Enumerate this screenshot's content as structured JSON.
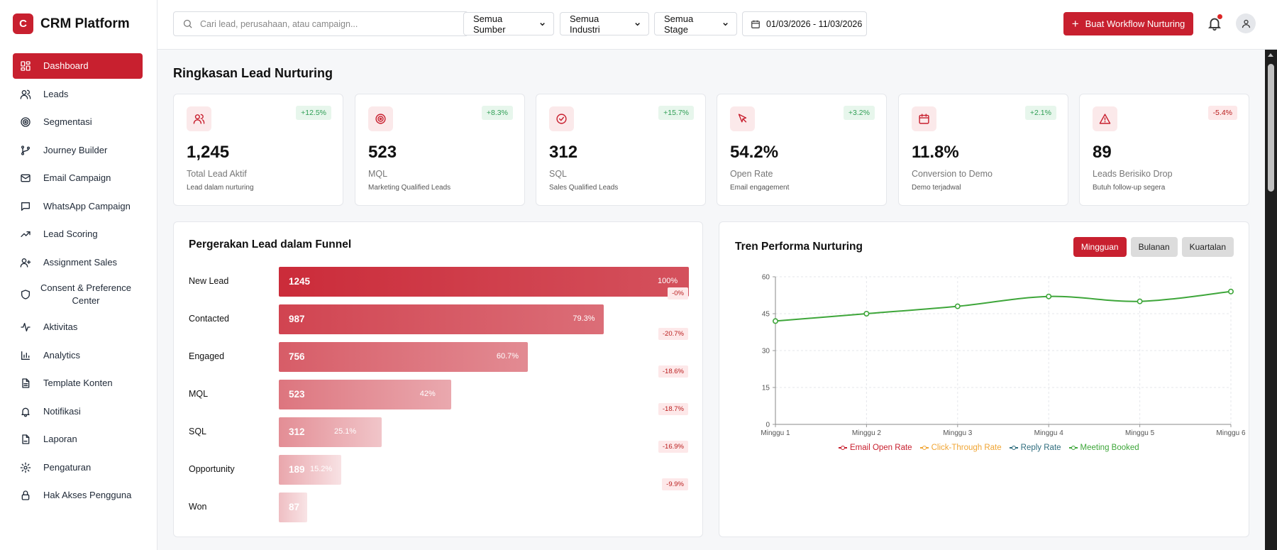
{
  "brand": {
    "logo_letter": "C",
    "name": "CRM Platform"
  },
  "sidebar": {
    "items": [
      {
        "label": "Dashboard",
        "icon": "dashboard-icon",
        "active": true
      },
      {
        "label": "Leads",
        "icon": "users-icon"
      },
      {
        "label": "Segmentasi",
        "icon": "target-icon"
      },
      {
        "label": "Journey Builder",
        "icon": "git-branch-icon"
      },
      {
        "label": "Email Campaign",
        "icon": "mail-icon"
      },
      {
        "label": "WhatsApp Campaign",
        "icon": "chat-icon"
      },
      {
        "label": "Lead Scoring",
        "icon": "trending-up-icon"
      },
      {
        "label": "Assignment Sales",
        "icon": "user-plus-icon"
      },
      {
        "label": "Consent & Preference Center",
        "icon": "shield-icon"
      },
      {
        "label": "Aktivitas",
        "icon": "activity-icon"
      },
      {
        "label": "Analytics",
        "icon": "bar-chart-icon"
      },
      {
        "label": "Template Konten",
        "icon": "file-icon"
      },
      {
        "label": "Notifikasi",
        "icon": "bell-icon"
      },
      {
        "label": "Laporan",
        "icon": "report-icon"
      },
      {
        "label": "Pengaturan",
        "icon": "gear-icon"
      },
      {
        "label": "Hak Akses Pengguna",
        "icon": "lock-icon"
      }
    ]
  },
  "topbar": {
    "search_placeholder": "Cari lead, perusahaan, atau campaign...",
    "filters": [
      "Semua Sumber",
      "Semua Industri",
      "Semua Stage"
    ],
    "date_range": "01/03/2026 - 11/03/2026",
    "primary_button": "Buat Workflow Nurturing"
  },
  "colors": {
    "accent": "#c8202f",
    "positive": "#2f9e55",
    "negative": "#b91c1c",
    "series_line": "#3ea63a"
  },
  "page_title": "Ringkasan Lead Nurturing",
  "kpis": [
    {
      "icon": "users-icon",
      "badge": "+12.5%",
      "trend": "up",
      "value": "1,245",
      "label": "Total Lead Aktif",
      "sub": "Lead dalam nurturing"
    },
    {
      "icon": "target-icon",
      "badge": "+8.3%",
      "trend": "up",
      "value": "523",
      "label": "MQL",
      "sub": "Marketing Qualified Leads"
    },
    {
      "icon": "check-circle-icon",
      "badge": "+15.7%",
      "trend": "up",
      "value": "312",
      "label": "SQL",
      "sub": "Sales Qualified Leads"
    },
    {
      "icon": "cursor-icon",
      "badge": "+3.2%",
      "trend": "up",
      "value": "54.2%",
      "label": "Open Rate",
      "sub": "Email engagement"
    },
    {
      "icon": "calendar-icon",
      "badge": "+2.1%",
      "trend": "up",
      "value": "11.8%",
      "label": "Conversion to Demo",
      "sub": "Demo terjadwal"
    },
    {
      "icon": "alert-icon",
      "badge": "-5.4%",
      "trend": "down",
      "value": "89",
      "label": "Leads Berisiko Drop",
      "sub": "Butuh follow-up segera"
    }
  ],
  "funnel": {
    "title": "Pergerakan Lead dalam Funnel",
    "stages": [
      {
        "label": "New Lead",
        "count": "1245",
        "pct": "100%",
        "share": 1.0,
        "delta": "-0%"
      },
      {
        "label": "Contacted",
        "count": "987",
        "pct": "79.3%",
        "share": 0.793,
        "delta": "-20.7%"
      },
      {
        "label": "Engaged",
        "count": "756",
        "pct": "60.7%",
        "share": 0.607,
        "delta": "-18.6%"
      },
      {
        "label": "MQL",
        "count": "523",
        "pct": "42%",
        "share": 0.42,
        "delta": "-18.7%"
      },
      {
        "label": "SQL",
        "count": "312",
        "pct": "25.1%",
        "share": 0.251,
        "delta": "-16.9%"
      },
      {
        "label": "Opportunity",
        "count": "189",
        "pct": "15.2%",
        "share": 0.152,
        "delta": "-9.9%"
      },
      {
        "label": "Won",
        "count": "87",
        "pct": "7%",
        "share": 0.07,
        "delta": ""
      }
    ]
  },
  "trend": {
    "title": "Tren Performa Nurturing",
    "tabs": [
      {
        "label": "Mingguan",
        "active": true
      },
      {
        "label": "Bulanan",
        "active": false
      },
      {
        "label": "Kuartalan",
        "active": false
      }
    ]
  },
  "chart_data": {
    "type": "line",
    "categories": [
      "Minggu 1",
      "Minggu 2",
      "Minggu 3",
      "Minggu 4",
      "Minggu 5",
      "Minggu 6"
    ],
    "ylim": [
      0,
      60
    ],
    "yticks": [
      0,
      15,
      30,
      45,
      60
    ],
    "grid": true,
    "legend_position": "bottom",
    "legend": [
      {
        "name": "Email Open Rate",
        "color": "#c8202f"
      },
      {
        "name": "Click-Through Rate",
        "color": "#f0a534"
      },
      {
        "name": "Reply Rate",
        "color": "#2f6d7e"
      },
      {
        "name": "Meeting Booked",
        "color": "#3ea63a"
      }
    ],
    "series": [
      {
        "name": "Meeting Booked",
        "color": "#3ea63a",
        "values": [
          42,
          45,
          48,
          52,
          50,
          54
        ]
      }
    ]
  }
}
